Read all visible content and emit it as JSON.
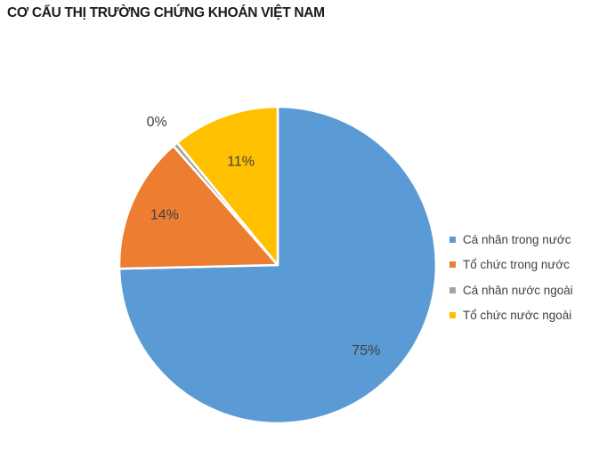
{
  "chart_data": {
    "type": "pie",
    "title": "CƠ CẤU THỊ TRƯỜNG CHỨNG KHOÁN VIỆT NAM",
    "categories": [
      "Cá nhân trong nước",
      "Tổ chức trong nước",
      "Cá nhân nước ngoài",
      "Tổ chức nước ngoài"
    ],
    "values": [
      75,
      14,
      0.5,
      11
    ],
    "data_labels": [
      "75%",
      "14%",
      "0%",
      "11%"
    ],
    "colors": [
      "#5B9BD5",
      "#ED7D31",
      "#A5A5A5",
      "#FFC000"
    ],
    "legend_position": "right",
    "start_angle": "12 o'clock, clockwise"
  }
}
